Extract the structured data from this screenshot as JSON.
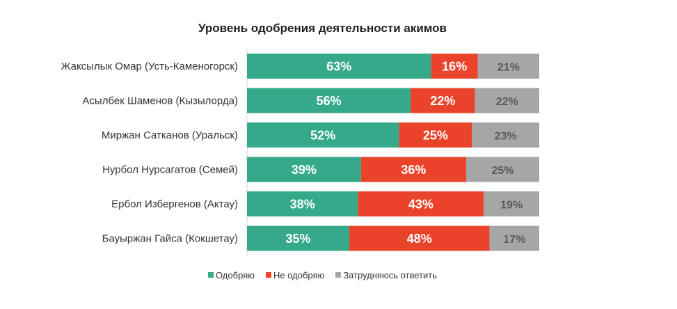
{
  "chart_data": {
    "type": "bar",
    "orientation": "horizontal",
    "stacked": true,
    "title": "Уровень одобрения деятельности акимов",
    "categories": [
      "Жаксылык Омар (Усть-Каменогорск)",
      "Асылбек Шаменов (Кызылорда)",
      "Миржан Сатканов (Уральск)",
      "Нурбол Нурсагатов (Семей)",
      "Ербол Избергенов (Актау)",
      "Бауыржан Гайса (Кокшетау)"
    ],
    "series": [
      {
        "name": "Одобряю",
        "color": "#35a98a",
        "values": [
          63,
          56,
          52,
          39,
          38,
          35
        ]
      },
      {
        "name": "Не одобряю",
        "color": "#e9432a",
        "values": [
          16,
          22,
          25,
          36,
          43,
          48
        ]
      },
      {
        "name": "Затрудняюсь ответить",
        "color": "#a6a6a6",
        "values": [
          21,
          22,
          23,
          25,
          19,
          17
        ]
      }
    ],
    "value_suffix": "%",
    "xlim": [
      0,
      100
    ],
    "legend_position": "bottom"
  }
}
